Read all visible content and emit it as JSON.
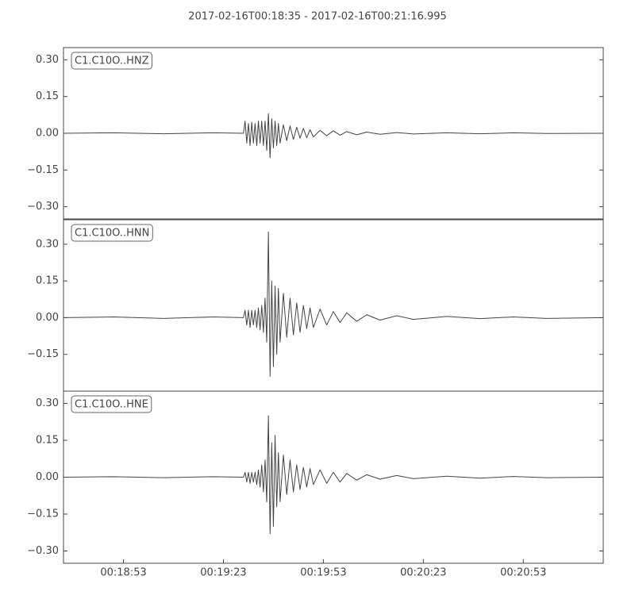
{
  "title": "2017-02-16T00:18:35  -  2017-02-16T00:21:16.995",
  "chart_data": [
    {
      "type": "line",
      "label": "C1.C10O..HNZ",
      "color": "#444444",
      "xlim": [
        1115,
        1277
      ],
      "ylim": [
        -0.35,
        0.35
      ],
      "yticks": [
        {
          "value": -0.3,
          "label": "−0.30"
        },
        {
          "value": -0.15,
          "label": "−0.15"
        },
        {
          "value": 0,
          "label": "0.00"
        },
        {
          "value": 0.15,
          "label": "0.15"
        },
        {
          "value": 0.3,
          "label": "0.30"
        }
      ],
      "x": [
        1115,
        1130,
        1145,
        1160,
        1169,
        1169.5,
        1170,
        1170.5,
        1171,
        1171.5,
        1172,
        1172.5,
        1173,
        1173.5,
        1174,
        1174.5,
        1175,
        1175.5,
        1176,
        1176.5,
        1177,
        1177.5,
        1178,
        1178.5,
        1179,
        1179.5,
        1180,
        1181,
        1182,
        1183,
        1184,
        1185,
        1186,
        1187,
        1188,
        1189,
        1190,
        1192,
        1194,
        1196,
        1198,
        1200,
        1203,
        1206,
        1210,
        1215,
        1220,
        1230,
        1240,
        1250,
        1260,
        1277
      ],
      "values": [
        0,
        0.002,
        -0.002,
        0.002,
        0,
        0.05,
        -0.04,
        0.04,
        -0.05,
        0.045,
        -0.04,
        0.04,
        -0.05,
        0.05,
        -0.04,
        0.05,
        -0.05,
        0.05,
        -0.07,
        0.08,
        -0.1,
        0.06,
        -0.06,
        0.05,
        -0.05,
        0.04,
        -0.04,
        0.035,
        -0.03,
        0.03,
        -0.025,
        0.025,
        -0.02,
        0.02,
        -0.018,
        0.015,
        -0.015,
        0.012,
        -0.01,
        0.01,
        -0.008,
        0.007,
        -0.006,
        0.005,
        -0.004,
        0.003,
        -0.003,
        0.002,
        -0.002,
        0.002,
        -0.001,
        0
      ]
    },
    {
      "type": "line",
      "label": "C1.C10O..HNN",
      "color": "#444444",
      "xlim": [
        1115,
        1277
      ],
      "ylim": [
        -0.3,
        0.4
      ],
      "yticks": [
        {
          "value": -0.15,
          "label": "−0.15"
        },
        {
          "value": 0,
          "label": "0.00"
        },
        {
          "value": 0.15,
          "label": "0.15"
        },
        {
          "value": 0.3,
          "label": "0.30"
        }
      ],
      "x": [
        1115,
        1130,
        1145,
        1160,
        1169,
        1169.5,
        1170,
        1170.5,
        1171,
        1171.5,
        1172,
        1172.5,
        1173,
        1173.5,
        1174,
        1174.5,
        1175,
        1175.5,
        1176,
        1176.5,
        1177,
        1177.5,
        1178,
        1178.5,
        1179,
        1179.5,
        1180,
        1181,
        1182,
        1183,
        1184,
        1185,
        1186,
        1187,
        1188,
        1189,
        1190,
        1192,
        1194,
        1196,
        1198,
        1200,
        1203,
        1206,
        1210,
        1215,
        1220,
        1230,
        1240,
        1250,
        1260,
        1277
      ],
      "values": [
        0,
        0.003,
        -0.003,
        0.003,
        0,
        0.03,
        -0.03,
        0.03,
        -0.04,
        0.03,
        -0.03,
        0.03,
        -0.04,
        0.04,
        -0.05,
        0.05,
        -0.06,
        0.08,
        -0.1,
        0.35,
        -0.24,
        0.15,
        -0.2,
        0.13,
        -0.15,
        0.12,
        -0.1,
        0.1,
        -0.08,
        0.08,
        -0.07,
        0.06,
        -0.06,
        0.05,
        -0.045,
        0.04,
        -0.04,
        0.035,
        -0.03,
        0.025,
        -0.02,
        0.02,
        -0.015,
        0.012,
        -0.01,
        0.008,
        -0.007,
        0.005,
        -0.004,
        0.003,
        -0.003,
        0
      ]
    },
    {
      "type": "line",
      "label": "C1.C10O..HNE",
      "color": "#444444",
      "xlim": [
        1115,
        1277
      ],
      "ylim": [
        -0.35,
        0.35
      ],
      "yticks": [
        {
          "value": -0.3,
          "label": "−0.30"
        },
        {
          "value": -0.15,
          "label": "−0.15"
        },
        {
          "value": 0,
          "label": "0.00"
        },
        {
          "value": 0.15,
          "label": "0.15"
        },
        {
          "value": 0.3,
          "label": "0.30"
        }
      ],
      "xticks": [
        {
          "value": 1133,
          "label": "00:18:53"
        },
        {
          "value": 1163,
          "label": "00:19:23"
        },
        {
          "value": 1193,
          "label": "00:19:53"
        },
        {
          "value": 1223,
          "label": "00:20:23"
        },
        {
          "value": 1253,
          "label": "00:20:53"
        }
      ],
      "x": [
        1115,
        1130,
        1145,
        1160,
        1169,
        1169.5,
        1170,
        1170.5,
        1171,
        1171.5,
        1172,
        1172.5,
        1173,
        1173.5,
        1174,
        1174.5,
        1175,
        1175.5,
        1176,
        1176.5,
        1177,
        1177.5,
        1178,
        1178.5,
        1179,
        1179.5,
        1180,
        1181,
        1182,
        1183,
        1184,
        1185,
        1186,
        1187,
        1188,
        1189,
        1190,
        1192,
        1194,
        1196,
        1198,
        1200,
        1203,
        1206,
        1210,
        1215,
        1220,
        1230,
        1240,
        1250,
        1260,
        1277
      ],
      "values": [
        0,
        0.002,
        -0.002,
        0.002,
        0,
        0.02,
        -0.02,
        0.02,
        -0.025,
        0.02,
        -0.02,
        0.02,
        -0.03,
        0.03,
        -0.04,
        0.05,
        -0.06,
        0.07,
        -0.1,
        0.25,
        -0.23,
        0.14,
        -0.2,
        0.17,
        -0.12,
        0.1,
        -0.1,
        0.09,
        -0.07,
        0.07,
        -0.06,
        0.05,
        -0.05,
        0.04,
        -0.04,
        0.035,
        -0.03,
        0.03,
        -0.025,
        0.02,
        -0.02,
        0.015,
        -0.012,
        0.01,
        -0.008,
        0.007,
        -0.006,
        0.004,
        -0.004,
        0.003,
        -0.002,
        0
      ]
    }
  ]
}
